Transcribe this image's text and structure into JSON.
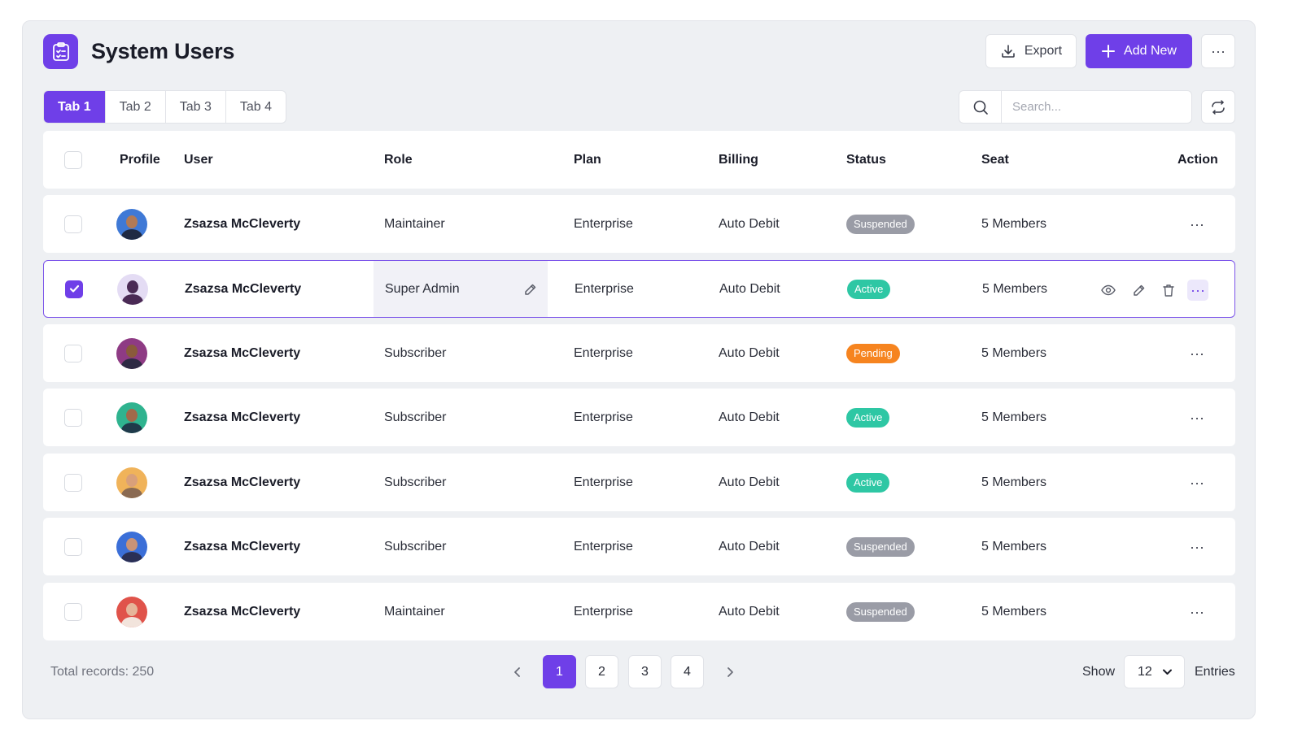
{
  "header": {
    "title": "System Users",
    "export_label": "Export",
    "add_new_label": "Add New",
    "more_label": "···"
  },
  "tabs": [
    {
      "label": "Tab 1",
      "active": true
    },
    {
      "label": "Tab 2",
      "active": false
    },
    {
      "label": "Tab 3",
      "active": false
    },
    {
      "label": "Tab 4",
      "active": false
    }
  ],
  "search": {
    "placeholder": "Search..."
  },
  "table": {
    "columns": {
      "profile": "Profile",
      "user": "User",
      "role": "Role",
      "plan": "Plan",
      "billing": "Billing",
      "status": "Status",
      "seat": "Seat",
      "action": "Action"
    },
    "rows": [
      {
        "user": "Zsazsa McCleverty",
        "role": "Maintainer",
        "plan": "Enterprise",
        "billing": "Auto Debit",
        "status": "Suspended",
        "seat": "5 Members",
        "checked": false
      },
      {
        "user": "Zsazsa McCleverty",
        "role": "Super Admin",
        "plan": "Enterprise",
        "billing": "Auto Debit",
        "status": "Active",
        "seat": "5 Members",
        "checked": true
      },
      {
        "user": "Zsazsa McCleverty",
        "role": "Subscriber",
        "plan": "Enterprise",
        "billing": "Auto Debit",
        "status": "Pending",
        "seat": "5 Members",
        "checked": false
      },
      {
        "user": "Zsazsa McCleverty",
        "role": "Subscriber",
        "plan": "Enterprise",
        "billing": "Auto Debit",
        "status": "Active",
        "seat": "5 Members",
        "checked": false
      },
      {
        "user": "Zsazsa McCleverty",
        "role": "Subscriber",
        "plan": "Enterprise",
        "billing": "Auto Debit",
        "status": "Active",
        "seat": "5 Members",
        "checked": false
      },
      {
        "user": "Zsazsa McCleverty",
        "role": "Subscriber",
        "plan": "Enterprise",
        "billing": "Auto Debit",
        "status": "Suspended",
        "seat": "5 Members",
        "checked": false
      },
      {
        "user": "Zsazsa McCleverty",
        "role": "Maintainer",
        "plan": "Enterprise",
        "billing": "Auto Debit",
        "status": "Suspended",
        "seat": "5 Members",
        "checked": false
      }
    ]
  },
  "status_colors": {
    "Suspended": "#9a9ca6",
    "Active": "#2ec7a4",
    "Pending": "#f6841f"
  },
  "avatars": [
    {
      "bg": "#3f79d6",
      "skin": "#b27a56",
      "shirt": "#1f2a44"
    },
    {
      "bg": "#e4dcf4",
      "skin": "#4a2a55",
      "shirt": "#4a2a55"
    },
    {
      "bg": "#8e3b84",
      "skin": "#8a5a3c",
      "shirt": "#2e2a44"
    },
    {
      "bg": "#2fb38f",
      "skin": "#a0694a",
      "shirt": "#1f3a4a"
    },
    {
      "bg": "#f0b35a",
      "skin": "#d9a07a",
      "shirt": "#8a6a52"
    },
    {
      "bg": "#3b6fd8",
      "skin": "#c99377",
      "shirt": "#2a2f55"
    },
    {
      "bg": "#e0534a",
      "skin": "#e6b59a",
      "shirt": "#f2e4dc"
    }
  ],
  "footer": {
    "total_records": "Total records: 250",
    "pages": [
      "1",
      "2",
      "3",
      "4"
    ],
    "current_page": "1",
    "show_label": "Show",
    "entries_value": "12",
    "entries_label": "Entries"
  },
  "colors": {
    "accent": "#6f3fe8",
    "panel_bg": "#eef0f3"
  }
}
